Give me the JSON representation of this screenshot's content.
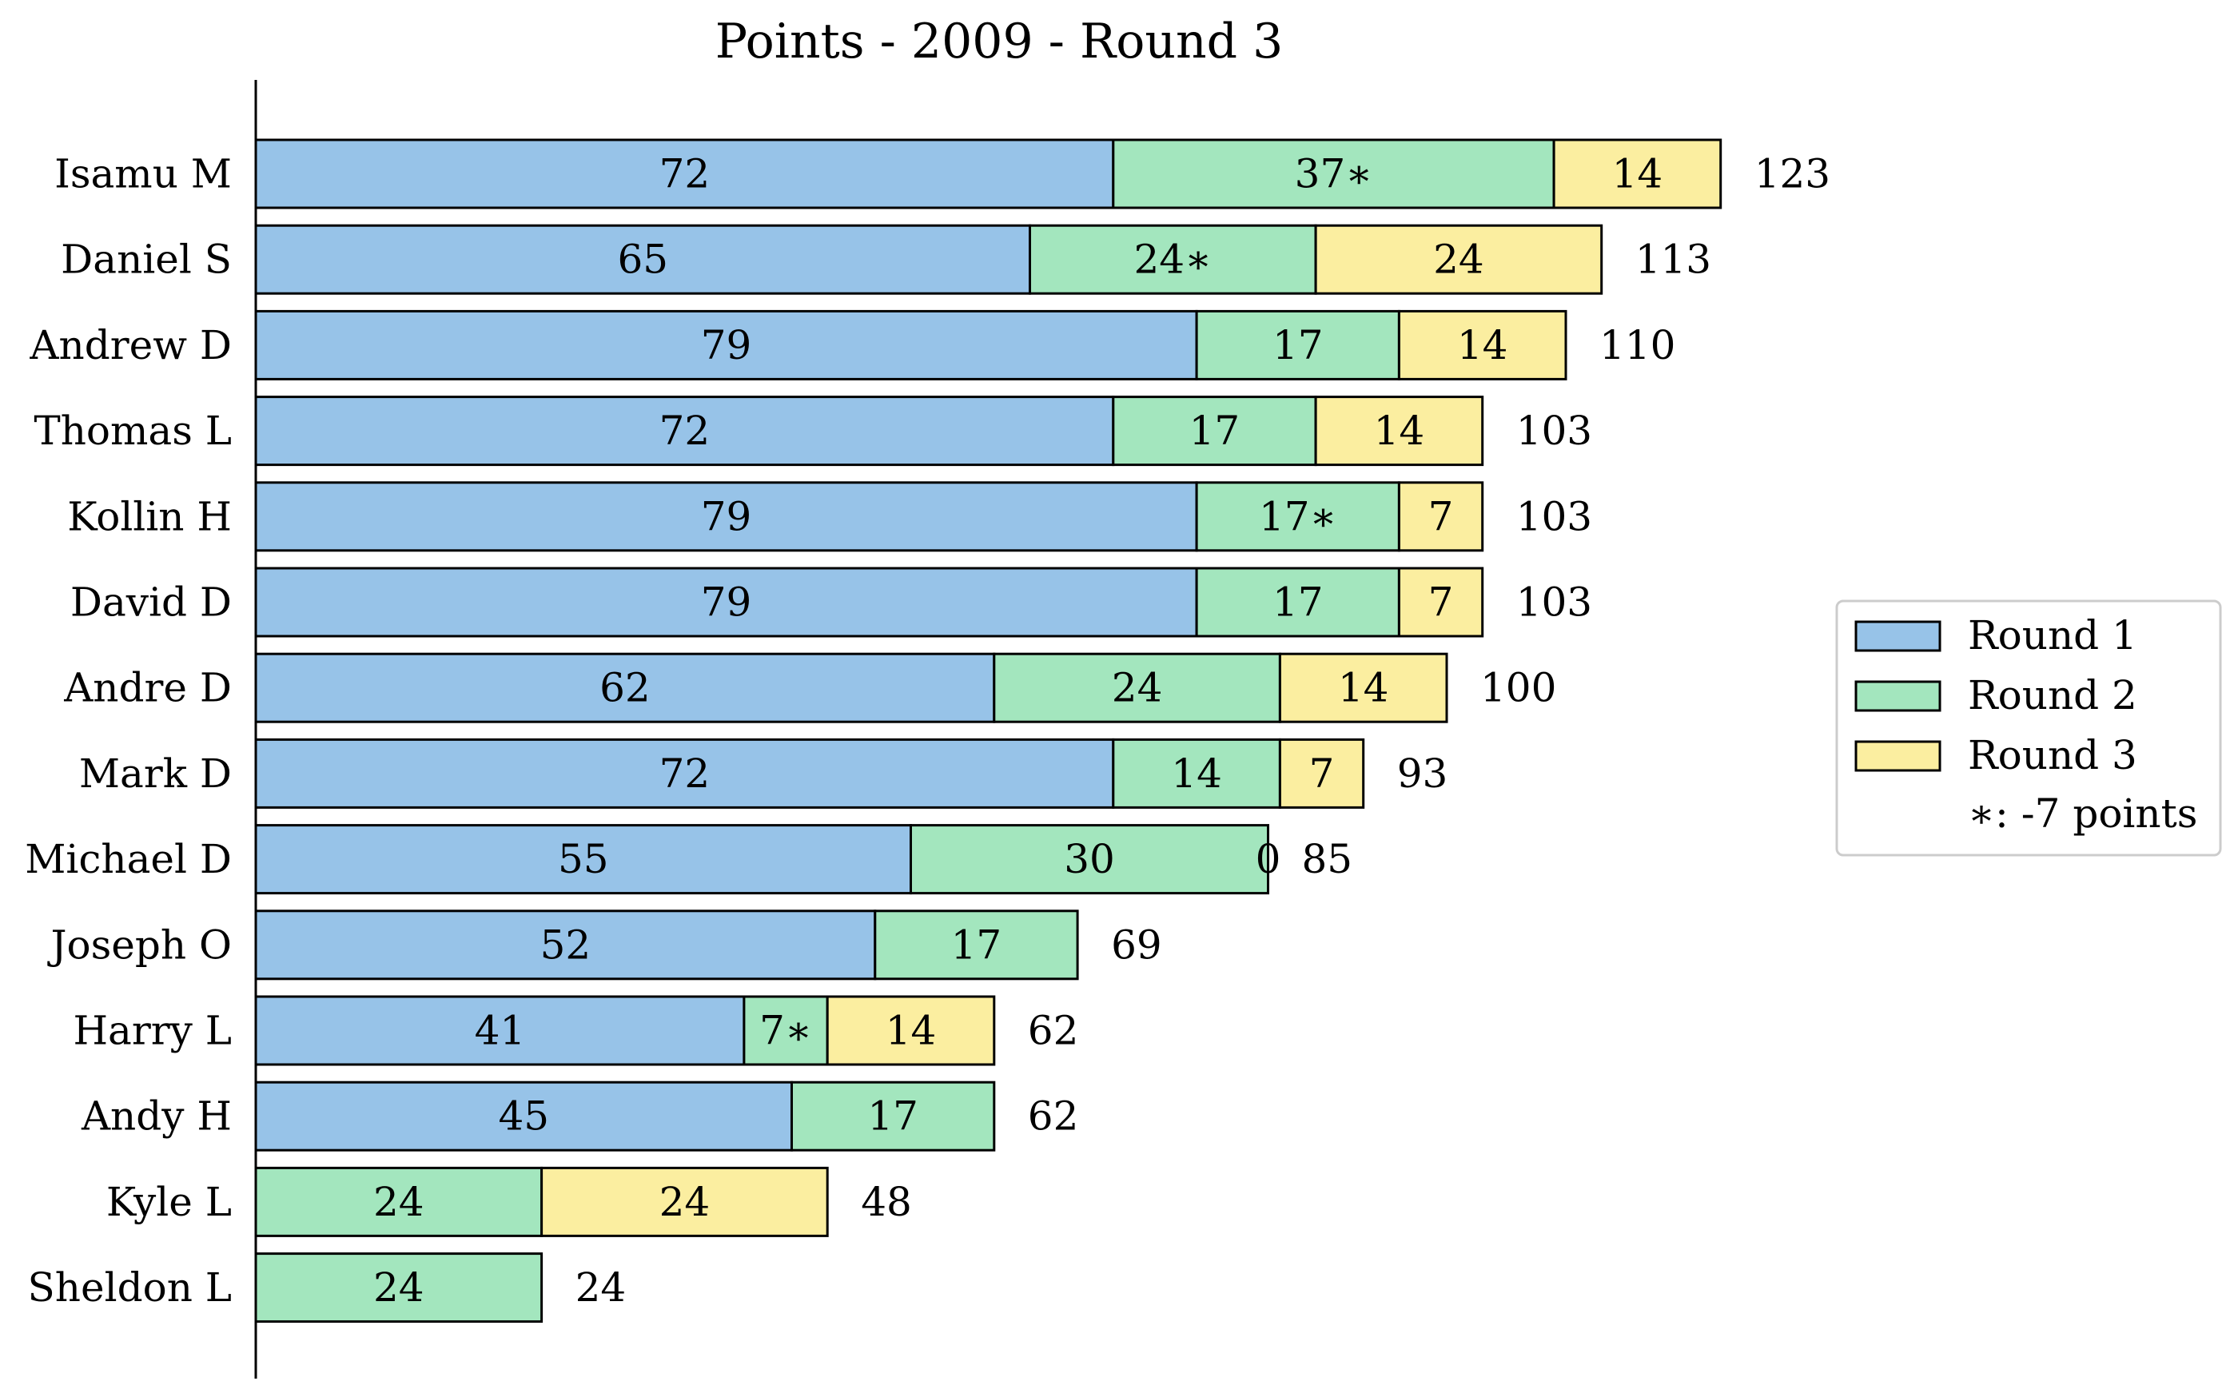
{
  "chart_data": {
    "type": "bar",
    "orientation": "horizontal",
    "stacked": true,
    "title": "Points - 2009 - Round 3",
    "xlabel": "",
    "ylabel": "",
    "xlim": [
      0,
      140
    ],
    "grid": false,
    "legend_position": "right",
    "categories": [
      "Isamu M",
      "Daniel S",
      "Andrew D",
      "Thomas L",
      "Kollin H",
      "David D",
      "Andre D",
      "Mark D",
      "Michael D",
      "Joseph O",
      "Harry L",
      "Andy H",
      "Kyle L",
      "Sheldon L"
    ],
    "series": [
      {
        "name": "Round 1",
        "color": "#97c3e8",
        "values": [
          72,
          65,
          79,
          72,
          79,
          79,
          62,
          72,
          55,
          52,
          41,
          45,
          null,
          null
        ],
        "labels": [
          "72",
          "65",
          "79",
          "72",
          "79",
          "79",
          "62",
          "72",
          "55",
          "52",
          "41",
          "45",
          "",
          ""
        ]
      },
      {
        "name": "Round 2",
        "color": "#a3e6be",
        "values": [
          37,
          24,
          17,
          17,
          17,
          17,
          24,
          14,
          30,
          17,
          7,
          17,
          24,
          24
        ],
        "labels": [
          "37∗",
          "24∗",
          "17",
          "17",
          "17∗",
          "17",
          "24",
          "14",
          "30",
          "17",
          "7∗",
          "17",
          "24",
          "24"
        ]
      },
      {
        "name": "Round 3",
        "color": "#fbeea0",
        "values": [
          14,
          24,
          14,
          14,
          7,
          7,
          14,
          7,
          0,
          null,
          14,
          null,
          24,
          null
        ],
        "labels": [
          "14",
          "24",
          "14",
          "14",
          "7",
          "7",
          "14",
          "7",
          "0",
          "",
          "14",
          "",
          "24",
          ""
        ]
      }
    ],
    "totals": [
      123,
      113,
      110,
      103,
      103,
      103,
      100,
      93,
      85,
      69,
      62,
      62,
      48,
      24
    ],
    "legend_entries": [
      "Round 1",
      "Round 2",
      "Round 3"
    ],
    "annotation": "∗: -7 points"
  }
}
